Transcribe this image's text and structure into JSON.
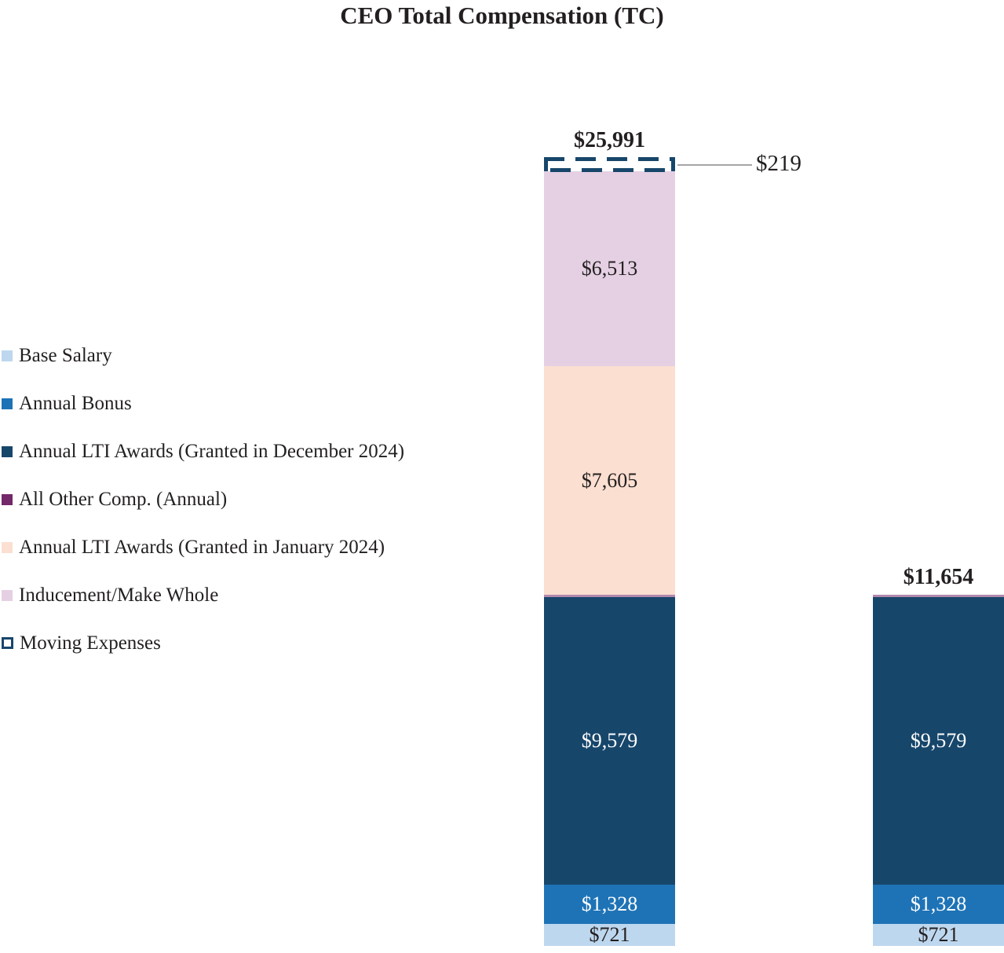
{
  "title": "CEO Total Compensation (TC)",
  "colors": {
    "text": "#231f20",
    "callout_line": "#a6a6a6",
    "base_salary": "#bdd7ee",
    "annual_bonus": "#1e73b6",
    "annual_lti_december": "#17466b",
    "all_other_comp": "#732869",
    "annual_lti_january": "#fbdfd1",
    "inducement_make_whole": "#e5d0e3",
    "moving_expenses_outline": "#17466b"
  },
  "chart_data": {
    "type": "bar",
    "stacked": true,
    "title": "CEO Total Compensation (TC)",
    "legend_position": "left",
    "grid": false,
    "axes_visible": false,
    "legend": [
      {
        "label": "Base Salary",
        "color": "#bdd7ee",
        "swatch": "filled"
      },
      {
        "label": "Annual Bonus",
        "color": "#1e73b6",
        "swatch": "filled"
      },
      {
        "label": "Annual LTI Awards (Granted in December 2024)",
        "color": "#17466b",
        "swatch": "filled"
      },
      {
        "label": "All Other Comp. (Annual)",
        "color": "#732869",
        "swatch": "filled"
      },
      {
        "label": "Annual LTI Awards (Granted in January 2024)",
        "color": "#fbdfd1",
        "swatch": "filled"
      },
      {
        "label": "Inducement/Make Whole",
        "color": "#e5d0e3",
        "swatch": "filled"
      },
      {
        "label": "Moving Expenses",
        "color": "#17466b",
        "swatch": "outline"
      }
    ],
    "bars": [
      {
        "total": 25991,
        "total_label": "$25,991",
        "segments": [
          {
            "name": "Base Salary",
            "value": 721,
            "label": "$721",
            "label_color": "dark"
          },
          {
            "name": "Annual Bonus",
            "value": 1328,
            "label": "$1,328",
            "label_color": "light"
          },
          {
            "name": "Annual LTI Awards (Granted in December 2024)",
            "value": 9579,
            "label": "$9,579",
            "label_color": "light"
          },
          {
            "name": "All Other Comp. (Annual)",
            "value": 26,
            "label": "",
            "value_estimated": true
          },
          {
            "name": "Annual LTI Awards (Granted in January 2024)",
            "value": 7605,
            "label": "$7,605",
            "label_color": "dark"
          },
          {
            "name": "Inducement/Make Whole",
            "value": 6513,
            "label": "$6,513",
            "label_color": "dark"
          },
          {
            "name": "Moving Expenses",
            "value": 219,
            "label": "",
            "callout_label": "$219",
            "style": "dashed-outline"
          }
        ]
      },
      {
        "total": 11654,
        "total_label": "$11,654",
        "segments": [
          {
            "name": "Base Salary",
            "value": 721,
            "label": "$721",
            "label_color": "dark"
          },
          {
            "name": "Annual Bonus",
            "value": 1328,
            "label": "$1,328",
            "label_color": "light"
          },
          {
            "name": "Annual LTI Awards (Granted in December 2024)",
            "value": 9579,
            "label": "$9,579",
            "label_color": "light"
          },
          {
            "name": "All Other Comp. (Annual)",
            "value": 26,
            "label": "",
            "value_estimated": true
          }
        ]
      }
    ],
    "callout": {
      "label": "$219",
      "target_segment": "Moving Expenses"
    }
  }
}
